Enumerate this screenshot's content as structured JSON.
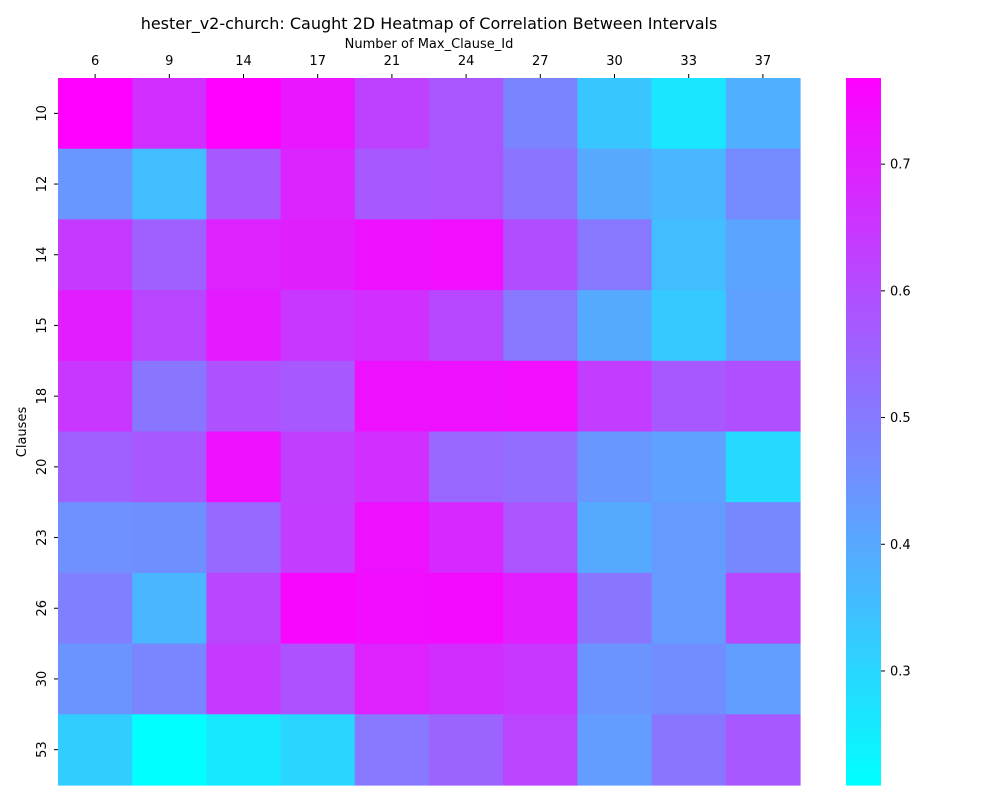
{
  "chart_data": {
    "type": "heatmap",
    "title": "hester_v2-church: Caught 2D Heatmap of Correlation Between Intervals",
    "xlabel": "Number of Max_Clause_Id",
    "ylabel": "Clauses",
    "x_position": "top",
    "colormap": "cool",
    "x_categories": [
      "6",
      "9",
      "14",
      "17",
      "21",
      "24",
      "27",
      "30",
      "33",
      "37"
    ],
    "y_categories": [
      "10",
      "12",
      "14",
      "15",
      "18",
      "20",
      "23",
      "26",
      "30",
      "53"
    ],
    "values": [
      [
        0.765,
        0.665,
        0.768,
        0.72,
        0.625,
        0.58,
        0.48,
        0.335,
        0.265,
        0.385
      ],
      [
        0.44,
        0.355,
        0.575,
        0.69,
        0.575,
        0.58,
        0.515,
        0.4,
        0.37,
        0.465
      ],
      [
        0.64,
        0.56,
        0.695,
        0.7,
        0.73,
        0.735,
        0.6,
        0.505,
        0.355,
        0.41
      ],
      [
        0.705,
        0.615,
        0.71,
        0.65,
        0.665,
        0.61,
        0.505,
        0.395,
        0.325,
        0.415
      ],
      [
        0.65,
        0.51,
        0.59,
        0.575,
        0.73,
        0.73,
        0.735,
        0.635,
        0.575,
        0.595
      ],
      [
        0.56,
        0.575,
        0.73,
        0.63,
        0.665,
        0.545,
        0.53,
        0.44,
        0.415,
        0.29
      ],
      [
        0.45,
        0.455,
        0.54,
        0.635,
        0.73,
        0.68,
        0.585,
        0.395,
        0.43,
        0.47
      ],
      [
        0.49,
        0.37,
        0.615,
        0.755,
        0.74,
        0.745,
        0.705,
        0.51,
        0.43,
        0.61
      ],
      [
        0.445,
        0.475,
        0.64,
        0.59,
        0.695,
        0.67,
        0.65,
        0.445,
        0.46,
        0.42
      ],
      [
        0.32,
        0.21,
        0.26,
        0.3,
        0.505,
        0.55,
        0.62,
        0.425,
        0.51,
        0.575
      ]
    ],
    "colorbar": {
      "vmin": 0.21,
      "vmax": 0.768,
      "ticks": [
        0.3,
        0.4,
        0.5,
        0.6,
        0.7
      ],
      "tick_labels": [
        "0.3",
        "0.4",
        "0.5",
        "0.6",
        "0.7"
      ]
    }
  }
}
